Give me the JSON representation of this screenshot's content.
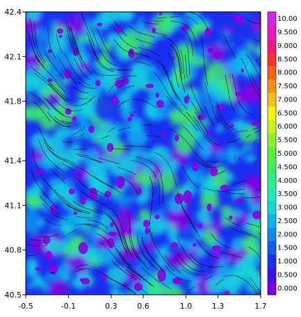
{
  "chart_data": {
    "type": "heatmap",
    "title": "",
    "xlabel": "",
    "ylabel": "",
    "xlim": [
      -0.5,
      1.7
    ],
    "ylim": [
      40.5,
      42.4
    ],
    "x_ticks": [
      "-0.5",
      "-0.1",
      "0.3",
      "0.6",
      "1.0",
      "1.3",
      "1.7"
    ],
    "y_ticks": [
      "42.4",
      "42.1",
      "41.8",
      "41.4",
      "41.1",
      "40.8",
      "40.5"
    ],
    "colorbar": {
      "levels": [
        "0.000",
        "0.500",
        "1.000",
        "1.500",
        "2.000",
        "2.500",
        "3.000",
        "3.500",
        "4.000",
        "4.500",
        "5.000",
        "5.500",
        "6.000",
        "6.500",
        "7.000",
        "7.500",
        "8.000",
        "8.500",
        "9.000",
        "9.500",
        "10.00"
      ],
      "colors": [
        "#7a00e6",
        "#3a10ee",
        "#1530f2",
        "#0f5cf2",
        "#0e8af0",
        "#12b2ec",
        "#16d6d6",
        "#1fe8b4",
        "#2ef088",
        "#3cf25a",
        "#5af03a",
        "#8ef02a",
        "#c8f020",
        "#f8f018",
        "#f8c018",
        "#f89018",
        "#f86018",
        "#f83030",
        "#f01880",
        "#e818c0",
        "#d820f0"
      ]
    },
    "field_description_colors": {
      "background_low": "#1a2ef0",
      "mid": "#16d0e0",
      "high": "#3ce870",
      "minimum": "#8800e0"
    },
    "overlay": "streamlines"
  }
}
